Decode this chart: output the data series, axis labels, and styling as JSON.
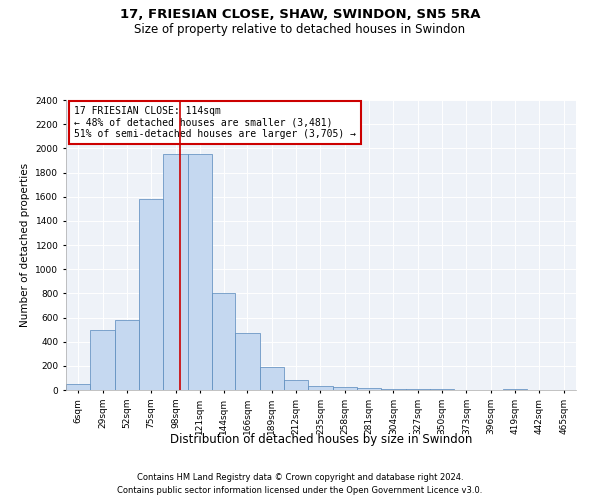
{
  "title": "17, FRIESIAN CLOSE, SHAW, SWINDON, SN5 5RA",
  "subtitle": "Size of property relative to detached houses in Swindon",
  "xlabel": "Distribution of detached houses by size in Swindon",
  "ylabel": "Number of detached properties",
  "footnote1": "Contains HM Land Registry data © Crown copyright and database right 2024.",
  "footnote2": "Contains public sector information licensed under the Open Government Licence v3.0.",
  "annotation_line1": "17 FRIESIAN CLOSE: 114sqm",
  "annotation_line2": "← 48% of detached houses are smaller (3,481)",
  "annotation_line3": "51% of semi-detached houses are larger (3,705) →",
  "bar_labels": [
    "6sqm",
    "29sqm",
    "52sqm",
    "75sqm",
    "98sqm",
    "121sqm",
    "144sqm",
    "166sqm",
    "189sqm",
    "212sqm",
    "235sqm",
    "258sqm",
    "281sqm",
    "304sqm",
    "327sqm",
    "350sqm",
    "373sqm",
    "396sqm",
    "419sqm",
    "442sqm",
    "465sqm"
  ],
  "bar_values": [
    50,
    500,
    580,
    1580,
    1950,
    1950,
    800,
    470,
    190,
    85,
    35,
    25,
    15,
    5,
    5,
    5,
    0,
    0,
    5,
    0,
    0
  ],
  "bar_left_edges": [
    6,
    29,
    52,
    75,
    98,
    121,
    144,
    166,
    189,
    212,
    235,
    258,
    281,
    304,
    327,
    350,
    373,
    396,
    419,
    442,
    465
  ],
  "bar_widths": [
    23,
    23,
    23,
    23,
    23,
    23,
    22,
    23,
    23,
    23,
    23,
    23,
    23,
    23,
    23,
    23,
    23,
    23,
    23,
    23,
    23
  ],
  "bar_color": "#c5d8f0",
  "bar_edge_color": "#5588bb",
  "vline_x": 114,
  "vline_color": "#cc0000",
  "annotation_box_color": "#cc0000",
  "background_color": "#eef2f8",
  "ylim": [
    0,
    2400
  ],
  "yticks": [
    0,
    200,
    400,
    600,
    800,
    1000,
    1200,
    1400,
    1600,
    1800,
    2000,
    2200,
    2400
  ],
  "title_fontsize": 9.5,
  "subtitle_fontsize": 8.5,
  "xlabel_fontsize": 8.5,
  "ylabel_fontsize": 7.5,
  "tick_fontsize": 6.5,
  "annotation_fontsize": 7,
  "footnote_fontsize": 6
}
